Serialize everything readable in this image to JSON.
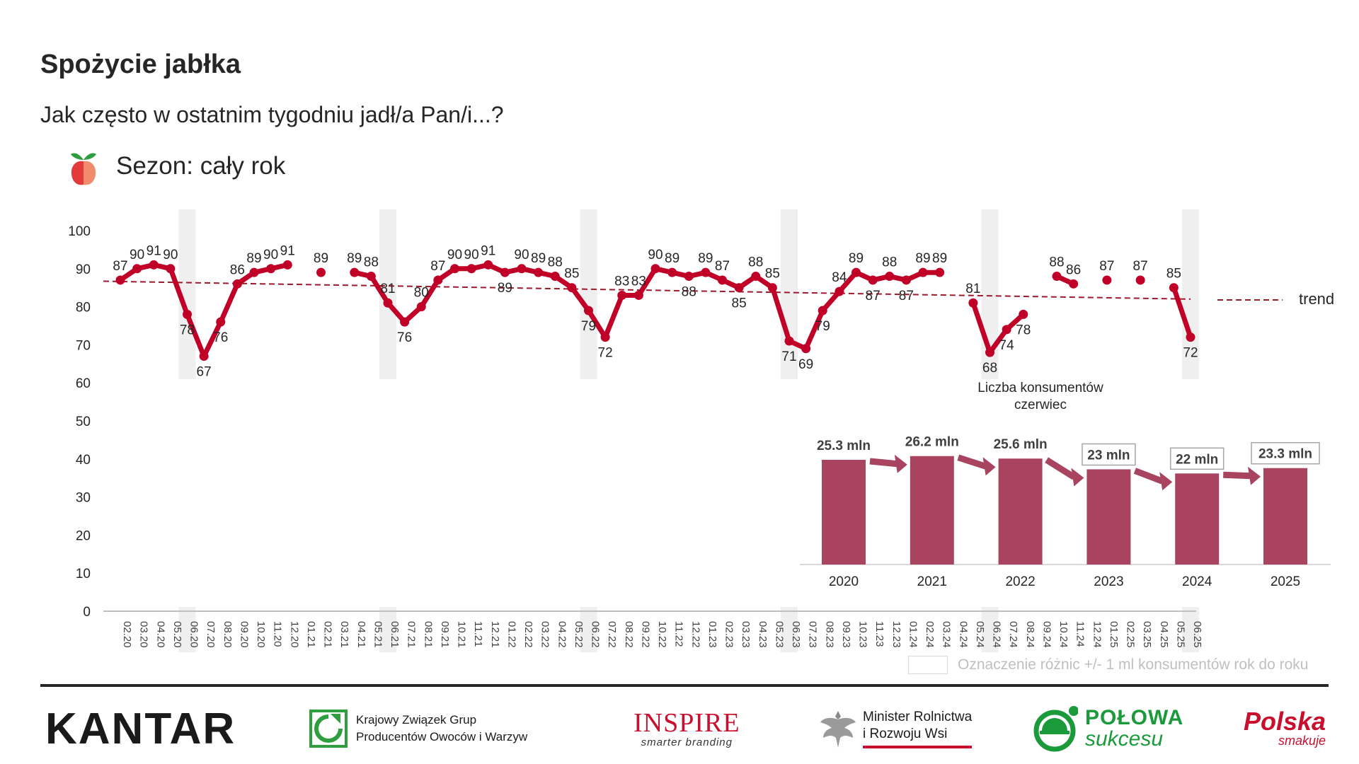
{
  "header": {
    "title": "Spożycie jabłka",
    "subtitle": "Jak często w ostatnim tygodniu jadł/a Pan/i...?",
    "season_label": "Sezon: cały rok",
    "season_icon": "apple-icon"
  },
  "chart_data": [
    {
      "type": "line",
      "ylim": [
        0,
        100
      ],
      "yticks": [
        0,
        10,
        20,
        30,
        40,
        50,
        60,
        70,
        80,
        90,
        100
      ],
      "grid": false,
      "x": [
        "02.20",
        "03.20",
        "04.20",
        "05.20",
        "06.20",
        "07.20",
        "08.20",
        "09.20",
        "10.20",
        "11.20",
        "12.20",
        "01.21",
        "02.21",
        "03.21",
        "04.21",
        "05.21",
        "06.21",
        "07.21",
        "08.21",
        "09.21",
        "10.21",
        "11.21",
        "12.21",
        "01.22",
        "02.22",
        "03.22",
        "04.22",
        "05.22",
        "06.22",
        "07.22",
        "08.22",
        "09.22",
        "10.22",
        "11.22",
        "12.22",
        "01.23",
        "02.23",
        "03.23",
        "04.23",
        "05.23",
        "06.23",
        "07.23",
        "08.23",
        "09.23",
        "10.23",
        "11.23",
        "12.23",
        "01.24",
        "02.24",
        "03.24",
        "04.24",
        "05.24",
        "06.24",
        "07.24",
        "08.24",
        "09.24",
        "10.24",
        "11.24",
        "12.24",
        "01.25",
        "02.25",
        "03.25",
        "04.25",
        "05.25",
        "06.25"
      ],
      "series": [
        {
          "values": [
            87,
            90,
            91,
            90,
            78,
            67,
            76,
            86,
            89,
            90,
            91,
            null,
            89,
            null,
            89,
            88,
            81,
            76,
            80,
            87,
            90,
            90,
            91,
            89,
            90,
            89,
            88,
            85,
            79,
            72,
            83,
            83,
            90,
            89,
            88,
            89,
            87,
            85,
            88,
            85,
            71,
            69,
            79,
            84,
            89,
            87,
            88,
            87,
            89,
            89,
            null,
            81,
            68,
            74,
            78,
            null,
            88,
            86,
            null,
            87,
            null,
            87,
            null,
            85,
            72
          ],
          "color": "#c00026"
        }
      ],
      "trend": {
        "label": "trend",
        "start": 86.7,
        "end": 82.0,
        "color": "#9c1a2b"
      },
      "highlighted_months": [
        "06.20",
        "06.21",
        "06.22",
        "06.23",
        "06.24",
        "06.25"
      ],
      "highlight_note": "Oznaczenie różnic +/- 1 ml konsumentów rok do roku"
    },
    {
      "type": "bar",
      "title": "Liczba konsumentów czerwiec",
      "title_lines": [
        "Liczba konsumentów",
        "czerwiec"
      ],
      "categories": [
        "2020",
        "2021",
        "2022",
        "2023",
        "2024",
        "2025"
      ],
      "values": [
        25.3,
        26.2,
        25.6,
        23,
        22,
        23.3
      ],
      "labels": [
        "25.3 mln",
        "26.2 mln",
        "25.6 mln",
        "23 mln",
        "22 mln",
        "23.3 mln"
      ],
      "boxed_labels": [
        false,
        false,
        false,
        true,
        true,
        true
      ],
      "color": "#a8445f",
      "arrow_color": "#a8445f"
    }
  ],
  "footer": {
    "kantar": "KANTAR",
    "kzgp_line1": "Krajowy Związek Grup",
    "kzgp_line2": "Producentów Owoców i Warzyw",
    "inspire_big": "INSPIRE",
    "inspire_small": "smarter branding",
    "minister_line1": "Minister Rolnictwa",
    "minister_line2": "i Rozwoju Wsi",
    "polowa_line1": "POŁOWA",
    "polowa_line2": "sukcesu",
    "polska_line1": "Polska",
    "polska_line2": "smakuje"
  }
}
